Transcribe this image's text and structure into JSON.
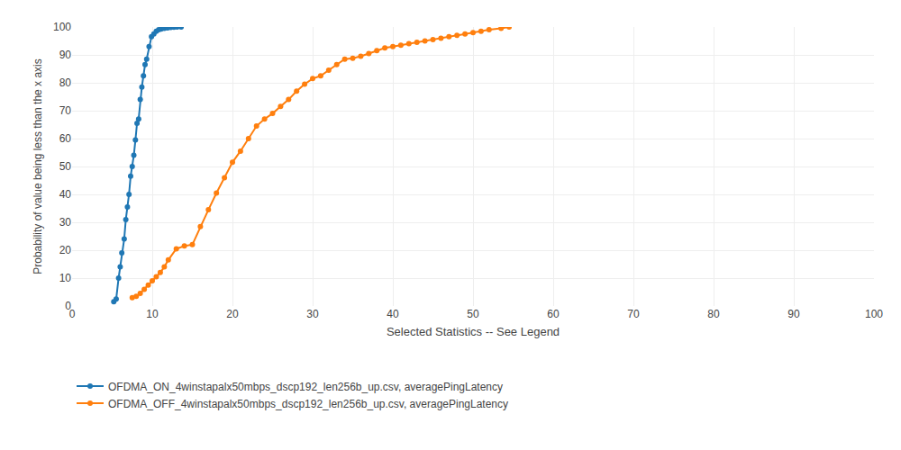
{
  "chart_data": {
    "type": "line",
    "xlabel": "Selected Statistics -- See Legend",
    "ylabel": "Probability of value being less than the x axis",
    "xlim": [
      0,
      100
    ],
    "ylim": [
      0,
      100
    ],
    "xticks": [
      0,
      10,
      20,
      30,
      40,
      50,
      60,
      70,
      80,
      90,
      100
    ],
    "yticks": [
      0,
      10,
      20,
      30,
      40,
      50,
      60,
      70,
      80,
      90,
      100
    ],
    "grid": true,
    "legend": "bottom",
    "marker": "circle",
    "line_style": "solid",
    "series": [
      {
        "name": "OFDMA_ON_4winstapalx50mbps_dscp192_len256b_up.csv, averagePingLatency",
        "x": [
          5.2,
          5.5,
          5.8,
          6.0,
          6.2,
          6.5,
          6.7,
          6.9,
          7.1,
          7.3,
          7.5,
          7.7,
          7.9,
          8.1,
          8.3,
          8.5,
          8.7,
          8.9,
          9.1,
          9.3,
          9.6,
          9.9,
          10.2,
          10.5,
          10.8,
          11.1,
          11.5,
          11.9,
          12.3,
          12.7,
          13.1,
          13.6
        ],
        "values": [
          1.5,
          2.5,
          10.0,
          14.0,
          19.0,
          24.0,
          31.0,
          35.5,
          40.0,
          46.5,
          50.0,
          54.0,
          59.5,
          65.5,
          67.0,
          74.0,
          78.5,
          82.5,
          86.5,
          88.5,
          93.0,
          96.5,
          97.5,
          98.5,
          99.0,
          99.3,
          99.5,
          99.7,
          99.8,
          99.9,
          100.0,
          100.0
        ]
      },
      {
        "name": "OFDMA_OFF_4winstapalx50mbps_dscp192_len256b_up.csv, averagePingLatency",
        "x": [
          7.5,
          8.0,
          8.5,
          9.0,
          9.5,
          10.0,
          10.5,
          11.0,
          11.5,
          12.0,
          13.0,
          14.0,
          15.0,
          16.0,
          17.0,
          18.0,
          19.0,
          20.0,
          21.0,
          22.0,
          23.0,
          24.0,
          25.0,
          26.0,
          27.0,
          28.0,
          29.0,
          30.0,
          31.0,
          32.0,
          33.0,
          34.0,
          35.0,
          36.0,
          37.0,
          38.0,
          39.0,
          40.0,
          41.0,
          42.0,
          43.0,
          44.0,
          45.0,
          46.0,
          47.0,
          48.0,
          49.0,
          50.0,
          51.0,
          52.0,
          53.5,
          54.5
        ],
        "values": [
          3.0,
          3.5,
          4.5,
          6.0,
          7.5,
          9.0,
          10.5,
          12.0,
          14.0,
          16.5,
          20.5,
          21.5,
          22.0,
          28.5,
          34.5,
          40.5,
          46.0,
          51.5,
          55.5,
          60.0,
          64.5,
          67.0,
          69.0,
          71.5,
          74.0,
          77.0,
          79.5,
          81.5,
          82.5,
          84.5,
          86.5,
          88.5,
          88.8,
          89.5,
          90.5,
          91.5,
          92.5,
          93.0,
          93.5,
          94.0,
          94.5,
          95.0,
          95.5,
          96.0,
          96.5,
          97.0,
          97.5,
          98.0,
          98.5,
          99.0,
          99.5,
          100.0
        ]
      }
    ]
  }
}
